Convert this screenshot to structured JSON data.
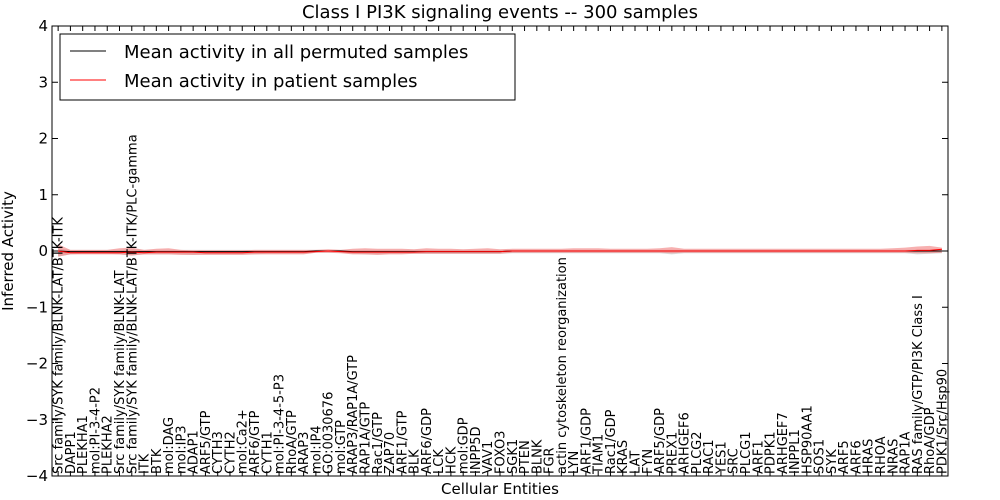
{
  "chart_data": {
    "type": "line",
    "title": "Class I PI3K signaling events -- 300 samples",
    "xlabel": "Cellular Entities",
    "ylabel": "Inferred Activity",
    "ylim": [
      -4,
      4
    ],
    "yticks": [
      4,
      3,
      2,
      1,
      0,
      -1,
      -2,
      -3,
      -4
    ],
    "ytick_labels": [
      "4",
      "3",
      "2",
      "1",
      "0",
      "−1",
      "−2",
      "−3",
      "−4"
    ],
    "grid": false,
    "legend_position": "top-left",
    "categories": [
      "Src family/SYK family/BLNK-LAT/BTK-ITK",
      "DAPP1",
      "PLEKHA1",
      "mol:PI-3-4-P2",
      "PLEKHA2",
      "Src family/SYK family/BLNK-LAT",
      "Src family/SYK family/BLNK-LAT/BTK-ITK/PLC-gamma",
      "ITK",
      "BTK",
      "mol:DAG",
      "mol:IP3",
      "ADAP1",
      "ARF5/GTP",
      "CYTH3",
      "CYTH2",
      "mol:Ca2+",
      "ARF6/GTP",
      "CYTH1",
      "mol:PI-3-4-5-P3",
      "RhoA/GTP",
      "ARAP3",
      "mol:IP4",
      "GO:0030676",
      "mol:GTP",
      "ARAP3/RAP1A/GTP",
      "RAP1A/GTP",
      "Rac1/GTP",
      "ZAP70",
      "ARF1/GTP",
      "BLK",
      "ARF6/GDP",
      "LCK",
      "HCK",
      "mol:GDP",
      "INPP5D",
      "VAV1",
      "FOXO3",
      "SGK1",
      "PTEN",
      "BLNK",
      "FGR",
      "actin cytoskeleton reorganization",
      "LYN",
      "ARF1/GDP",
      "TIAM1",
      "Rac1/GDP",
      "KRAS",
      "LAT",
      "FYN",
      "ARF5/GDP",
      "PREX1",
      "ARHGEF6",
      "PLCG2",
      "RAC1",
      "YES1",
      "SRC",
      "PLCG1",
      "ARF1",
      "PDPK1",
      "ARHGEF7",
      "INPPL1",
      "HSP90AA1",
      "SOS1",
      "SYK",
      "ARF5",
      "ARF6",
      "HRAS",
      "RHOA",
      "NRAS",
      "RAP1A",
      "RAS family/GTP/PI3K Class I",
      "RhoA/GDP",
      "PDK1/Src/Hsp90"
    ],
    "series": [
      {
        "name": "Mean activity in all permuted samples",
        "color": "#000000",
        "values": [
          0,
          -0.01,
          -0.01,
          -0.01,
          -0.01,
          -0.01,
          -0.01,
          -0.01,
          -0.01,
          -0.01,
          -0.01,
          -0.01,
          -0.01,
          -0.01,
          -0.01,
          -0.01,
          -0.01,
          -0.01,
          -0.01,
          -0.01,
          -0.01,
          0,
          0,
          0,
          -0.01,
          -0.01,
          -0.01,
          -0.01,
          -0.01,
          -0.01,
          -0.01,
          -0.01,
          -0.01,
          -0.01,
          -0.01,
          -0.01,
          -0.01,
          0,
          0,
          0,
          0,
          0,
          0,
          0,
          0,
          0,
          0,
          0,
          0,
          0,
          0,
          0,
          0,
          0,
          0,
          0,
          0,
          0,
          0,
          0,
          0,
          0,
          0,
          0,
          0,
          0,
          0,
          0,
          0,
          0,
          0,
          0,
          0
        ],
        "band_lower": [
          -0.1,
          -0.06,
          -0.05,
          -0.05,
          -0.05,
          -0.06,
          -0.08,
          -0.06,
          -0.06,
          -0.06,
          -0.06,
          -0.07,
          -0.06,
          -0.06,
          -0.06,
          -0.06,
          -0.06,
          -0.05,
          -0.05,
          -0.05,
          -0.05,
          -0.03,
          -0.03,
          -0.03,
          -0.05,
          -0.06,
          -0.06,
          -0.05,
          -0.05,
          -0.05,
          -0.05,
          -0.05,
          -0.05,
          -0.05,
          -0.05,
          -0.05,
          -0.05,
          -0.04,
          -0.04,
          -0.04,
          -0.04,
          -0.04,
          -0.04,
          -0.04,
          -0.04,
          -0.04,
          -0.04,
          -0.04,
          -0.04,
          -0.04,
          -0.06,
          -0.04,
          -0.04,
          -0.04,
          -0.04,
          -0.04,
          -0.04,
          -0.04,
          -0.04,
          -0.04,
          -0.04,
          -0.04,
          -0.04,
          -0.04,
          -0.04,
          -0.04,
          -0.04,
          -0.04,
          -0.04,
          -0.04,
          -0.06,
          -0.05,
          -0.04
        ],
        "band_upper": [
          0.05,
          0.02,
          0.02,
          0.02,
          0.02,
          0.02,
          0.03,
          0.02,
          0.02,
          0.02,
          0.02,
          0.02,
          0.02,
          0.02,
          0.02,
          0.02,
          0.02,
          0.02,
          0.02,
          0.02,
          0.02,
          0.02,
          0.02,
          0.02,
          0.02,
          0.02,
          0.02,
          0.02,
          0.02,
          0.02,
          0.02,
          0.02,
          0.02,
          0.02,
          0.02,
          0.02,
          0.02,
          0.02,
          0.02,
          0.02,
          0.02,
          0.02,
          0.02,
          0.02,
          0.02,
          0.02,
          0.02,
          0.02,
          0.02,
          0.02,
          0.02,
          0.02,
          0.02,
          0.02,
          0.02,
          0.02,
          0.02,
          0.02,
          0.02,
          0.02,
          0.02,
          0.02,
          0.02,
          0.02,
          0.02,
          0.02,
          0.02,
          0.02,
          0.02,
          0.02,
          0.02,
          0.02,
          0.02
        ]
      },
      {
        "name": "Mean activity in patient samples",
        "color": "#ff0000",
        "values": [
          0,
          -0.03,
          -0.03,
          -0.03,
          -0.03,
          -0.03,
          -0.02,
          -0.03,
          -0.02,
          -0.02,
          -0.02,
          -0.02,
          -0.03,
          -0.03,
          -0.03,
          -0.03,
          -0.02,
          -0.02,
          -0.02,
          -0.02,
          -0.02,
          -0.01,
          0,
          -0.01,
          -0.02,
          -0.02,
          -0.02,
          -0.02,
          -0.02,
          -0.02,
          -0.01,
          -0.01,
          -0.01,
          -0.01,
          -0.01,
          -0.01,
          -0.01,
          0,
          0,
          0,
          0,
          0,
          0,
          0,
          0,
          0,
          0,
          0,
          0,
          0,
          0,
          0,
          0,
          0,
          0,
          0,
          0,
          0,
          0,
          0,
          0,
          0,
          0,
          0,
          0,
          0,
          0,
          0,
          0,
          0,
          0.01,
          0.01,
          0.03
        ],
        "band_lower": [
          -0.1,
          -0.06,
          -0.06,
          -0.06,
          -0.06,
          -0.06,
          -0.08,
          -0.06,
          -0.06,
          -0.06,
          -0.07,
          -0.07,
          -0.07,
          -0.07,
          -0.07,
          -0.07,
          -0.06,
          -0.06,
          -0.06,
          -0.06,
          -0.06,
          -0.03,
          -0.03,
          -0.04,
          -0.06,
          -0.06,
          -0.07,
          -0.06,
          -0.06,
          -0.05,
          -0.05,
          -0.05,
          -0.05,
          -0.05,
          -0.05,
          -0.05,
          -0.05,
          -0.03,
          -0.03,
          -0.03,
          -0.03,
          -0.03,
          -0.03,
          -0.03,
          -0.03,
          -0.03,
          -0.03,
          -0.03,
          -0.03,
          -0.03,
          -0.04,
          -0.03,
          -0.03,
          -0.03,
          -0.03,
          -0.03,
          -0.03,
          -0.03,
          -0.03,
          -0.03,
          -0.03,
          -0.03,
          -0.03,
          -0.03,
          -0.03,
          -0.03,
          -0.03,
          -0.03,
          -0.03,
          -0.03,
          -0.04,
          -0.04,
          -0.03
        ],
        "band_upper": [
          0.12,
          0.02,
          0.02,
          0.02,
          0.02,
          0.05,
          0.06,
          0.02,
          0.04,
          0.05,
          0.02,
          0.01,
          0.01,
          0.01,
          0.01,
          0.01,
          0.02,
          0.02,
          0.02,
          0.02,
          0.02,
          0.02,
          0.03,
          0.02,
          0.04,
          0.05,
          0.04,
          0.04,
          0.04,
          0.03,
          0.05,
          0.04,
          0.04,
          0.03,
          0.04,
          0.05,
          0.03,
          0.04,
          0.04,
          0.04,
          0.04,
          0.04,
          0.05,
          0.05,
          0.05,
          0.04,
          0.04,
          0.04,
          0.04,
          0.05,
          0.07,
          0.04,
          0.04,
          0.04,
          0.04,
          0.04,
          0.04,
          0.04,
          0.04,
          0.04,
          0.04,
          0.04,
          0.04,
          0.04,
          0.04,
          0.04,
          0.04,
          0.04,
          0.05,
          0.06,
          0.08,
          0.09,
          0.06
        ]
      }
    ]
  }
}
